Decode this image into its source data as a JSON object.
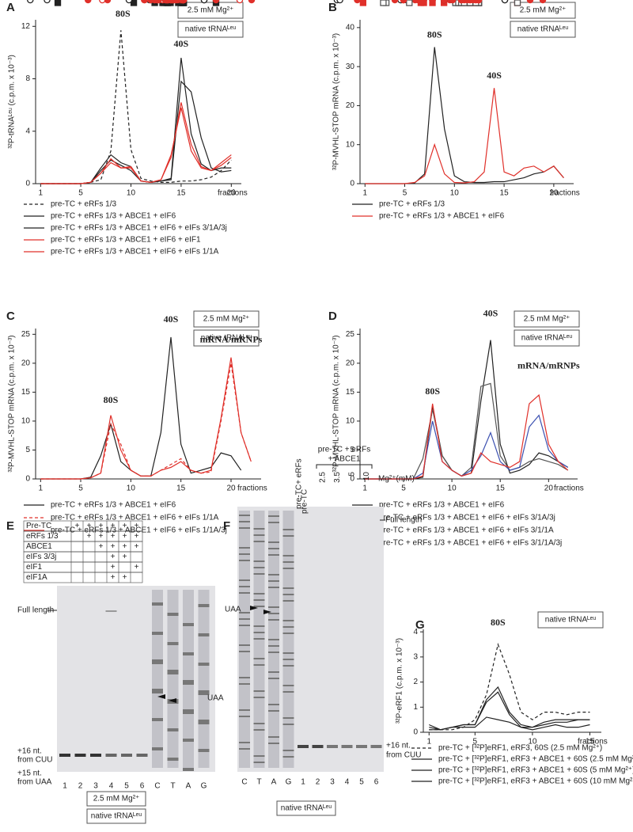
{
  "chart_data": [
    {
      "type": "line",
      "panel": "A",
      "ylabel": "³²P-tRNAᴸᵉᵘ (c.p.m. x 10⁻³)",
      "xlabel": "fractions",
      "x": [
        1,
        2,
        3,
        4,
        5,
        6,
        7,
        8,
        9,
        10,
        11,
        12,
        13,
        14,
        15,
        16,
        17,
        18,
        19,
        20
      ],
      "xlim": [
        0.5,
        21
      ],
      "xticks": [
        1,
        5,
        10,
        15,
        20
      ],
      "ylim": [
        0,
        12.5
      ],
      "yticks": [
        0,
        4,
        8,
        12
      ],
      "annotations": [
        "80S",
        "40S"
      ],
      "boxes": [
        "2.5 mM Mg²⁺",
        "native tRNAᴸᵉᵘ"
      ],
      "series": [
        {
          "name": "pre-TC + eRFs 1/3",
          "color": "#222222",
          "marker": "circle-open",
          "dashed": true,
          "values": [
            0,
            0,
            0,
            0,
            0,
            0.1,
            0.3,
            2.5,
            11.7,
            2.6,
            0.4,
            0.2,
            0.1,
            0.1,
            0.2,
            0.2,
            0.3,
            0.5,
            1.0,
            1.8
          ]
        },
        {
          "name": "pre-TC + eRFs 1/3 + ABCE1 + eIF6",
          "color": "#222222",
          "marker": "square",
          "dashed": false,
          "values": [
            0,
            0,
            0,
            0,
            0,
            0.1,
            1.2,
            2.2,
            1.6,
            1.3,
            0.2,
            0.1,
            0.2,
            0.4,
            9.6,
            3.8,
            1.5,
            1.0,
            1.2,
            1.2
          ]
        },
        {
          "name": "pre-TC + eRFs 1/3 + ABCE1 + eIF6 + eIFs 3/1A/3j",
          "color": "#222222",
          "marker": "triangle",
          "dashed": false,
          "values": [
            0,
            0,
            0,
            0,
            0,
            0.1,
            1.0,
            1.8,
            1.4,
            1.0,
            0.2,
            0.1,
            0.2,
            0.3,
            7.8,
            7.0,
            3.5,
            1.2,
            0.9,
            1.0
          ]
        },
        {
          "name": "pre-TC + eRFs 1/3 + ABCE1 + eIF6 + eIF1",
          "color": "#e0302a",
          "marker": "circle-open",
          "dashed": false,
          "values": [
            0,
            0,
            0,
            0,
            0,
            0.1,
            0.8,
            1.6,
            1.2,
            1.3,
            0.2,
            0.1,
            0.3,
            2.0,
            6.2,
            3.0,
            1.3,
            1.0,
            1.6,
            2.2
          ]
        },
        {
          "name": "pre-TC + eRFs 1/3 + ABCE1 + eIF6 + eIFs 1/1A",
          "color": "#e0302a",
          "marker": "circle",
          "dashed": false,
          "values": [
            0,
            0,
            0,
            0,
            0,
            0.1,
            0.8,
            1.9,
            1.2,
            1.2,
            0.2,
            0.1,
            0.3,
            2.2,
            5.8,
            2.5,
            1.2,
            1.0,
            1.4,
            2.0
          ]
        }
      ]
    },
    {
      "type": "line",
      "panel": "B",
      "ylabel": "³²P-MVHL-STOP mRNA (c.p.m. x 10⁻³)",
      "xlabel": "fractions",
      "x": [
        1,
        2,
        3,
        4,
        5,
        6,
        7,
        8,
        9,
        10,
        11,
        12,
        13,
        14,
        15,
        16,
        17,
        18,
        19,
        20,
        21
      ],
      "xlim": [
        0.5,
        22
      ],
      "xticks": [
        1,
        5,
        10,
        15,
        20
      ],
      "ylim": [
        0,
        42
      ],
      "yticks": [
        0,
        10,
        20,
        30,
        40
      ],
      "annotations": [
        "80S",
        "40S"
      ],
      "boxes": [
        "2.5 mM Mg²⁺",
        "native tRNAᴸᵉᵘ"
      ],
      "series": [
        {
          "name": "pre-TC + eRFs 1/3",
          "color": "#222222",
          "marker": "circle-open",
          "dashed": false,
          "values": [
            0,
            0,
            0,
            0,
            0,
            0.2,
            2.5,
            35,
            14,
            2,
            0.5,
            0.3,
            0.3,
            0.5,
            0.5,
            1,
            1.5,
            2.5,
            3,
            4.5,
            1.5
          ]
        },
        {
          "name": "pre-TC + eRFs 1/3 + ABCE1 + eIF6",
          "color": "#e0302a",
          "marker": "circle",
          "dashed": false,
          "values": [
            0,
            0,
            0,
            0,
            0,
            0.3,
            2,
            10,
            2.5,
            0.3,
            0.2,
            0.5,
            3,
            24.5,
            3,
            2,
            4,
            4.5,
            3,
            4.5,
            1.5
          ]
        }
      ]
    },
    {
      "type": "line",
      "panel": "C",
      "ylabel": "³²P-MVHL-STOP mRNA (c.p.m. x 10⁻³)",
      "xlabel": "fractions",
      "x": [
        1,
        2,
        3,
        4,
        5,
        6,
        7,
        8,
        9,
        10,
        11,
        12,
        13,
        14,
        15,
        16,
        17,
        18,
        19,
        20,
        21,
        22
      ],
      "xlim": [
        0.5,
        23
      ],
      "xticks": [
        1,
        5,
        10,
        15,
        20
      ],
      "ylim": [
        0,
        26
      ],
      "yticks": [
        0,
        5,
        10,
        15,
        20,
        25
      ],
      "annotations": [
        "80S",
        "40S",
        "mRNA/mRNPs"
      ],
      "boxes": [
        "2.5 mM Mg²⁺",
        "native tRNAᴸᵉᵘ"
      ],
      "series": [
        {
          "name": "pre-TC + eRFs 1/3 + ABCE1 + eIF6",
          "color": "#222222",
          "marker": "circle-open",
          "dashed": false,
          "values": [
            0,
            0,
            0,
            0,
            0,
            0.3,
            4,
            9.5,
            3,
            1.5,
            0.5,
            0.5,
            8,
            24.5,
            6,
            1,
            1.5,
            2,
            4.5,
            4,
            1.5,
            null
          ]
        },
        {
          "name": "pre-TC + eRFs 1/3 + ABCE1 + eIF6 + eIFs 1/1A",
          "color": "#e0302a",
          "marker": "square",
          "dashed": true,
          "values": [
            0,
            0,
            0,
            0,
            0,
            0.2,
            1,
            9.5,
            6,
            1.5,
            0.5,
            0.5,
            1.5,
            2.5,
            3.5,
            1.5,
            1,
            1.2,
            10,
            20,
            8,
            3
          ]
        },
        {
          "name": "pre-TC + eRFs 1/3 + ABCE1 + eIF6 + eIFs 1/1A/3j",
          "color": "#e0302a",
          "marker": "circle",
          "dashed": false,
          "values": [
            0,
            0,
            0,
            0,
            0,
            0.2,
            1,
            11,
            5,
            1.5,
            0.5,
            0.5,
            1.5,
            2,
            3,
            1.5,
            1,
            1.5,
            10.5,
            21,
            8,
            3
          ]
        }
      ]
    },
    {
      "type": "line",
      "panel": "D",
      "ylabel": "³²P-MVHL-STOP mRNA (c.p.m. x 10⁻³)",
      "xlabel": "fractions",
      "x": [
        1,
        2,
        3,
        4,
        5,
        6,
        7,
        8,
        9,
        10,
        11,
        12,
        13,
        14,
        15,
        16,
        17,
        18,
        19,
        20,
        21,
        22
      ],
      "xlim": [
        0.5,
        23
      ],
      "xticks": [
        1,
        5,
        10,
        15,
        20
      ],
      "ylim": [
        0,
        26
      ],
      "yticks": [
        0,
        5,
        10,
        15,
        20,
        25
      ],
      "annotations": [
        "80S",
        "40S",
        "mRNA/mRNPs"
      ],
      "boxes": [
        "2.5 mM Mg²⁺",
        "native tRNAᴸᵉᵘ"
      ],
      "series": [
        {
          "name": "pre-TC + eRFs 1/3 + ABCE1 + eIF6",
          "color": "#222222",
          "marker": "circle-open",
          "dashed": false,
          "values": [
            0,
            0,
            0,
            0,
            0,
            0,
            0.3,
            12.5,
            4,
            1.5,
            0.5,
            1,
            13.5,
            24,
            6,
            1,
            1.5,
            2.5,
            4.5,
            4,
            3,
            2
          ]
        },
        {
          "name": "pre-TC + eRFs 1/3 + ABCE1 + eIF6 + eIFs 3/1A/3j",
          "color": "#555555",
          "marker": "square-open",
          "dashed": false,
          "values": [
            0,
            0,
            0,
            0,
            0,
            0,
            3.5,
            12,
            4,
            1.5,
            0.5,
            2,
            16,
            16.5,
            4,
            1.5,
            2,
            3,
            3.5,
            3,
            2.5,
            1.5
          ]
        },
        {
          "name": "pre-TC + eRFs 1/3 + ABCE1 + eIF6 + eIFs 3/1/1A",
          "color": "#3a4fb0",
          "marker": "triangle",
          "dashed": false,
          "values": [
            0,
            0,
            0,
            0,
            0,
            0,
            1,
            10,
            3,
            1.5,
            0.5,
            1.5,
            4,
            8,
            3,
            1.5,
            2,
            9,
            11,
            5,
            3,
            2
          ]
        },
        {
          "name": "pre-TC + eRFs 1/3 + ABCE1 + eIF6 + eIFs 3/1/1A/3j",
          "color": "#e0302a",
          "marker": "circle",
          "dashed": false,
          "values": [
            0,
            0,
            0,
            0,
            0,
            0,
            0.5,
            13,
            3,
            1.5,
            0.5,
            1,
            4.5,
            3,
            2.5,
            2,
            3,
            13,
            14.5,
            6,
            3,
            1.5
          ]
        }
      ]
    },
    {
      "type": "line",
      "panel": "G",
      "ylabel": "³²P-eRF1 (c.p.m. x 10⁻³)",
      "xlabel": "fractions",
      "x": [
        1,
        2,
        3,
        4,
        5,
        6,
        7,
        8,
        9,
        10,
        11,
        12,
        13,
        14,
        15
      ],
      "xlim": [
        0.5,
        16
      ],
      "xticks": [
        1,
        5,
        10,
        15
      ],
      "ylim": [
        0,
        4.1
      ],
      "yticks": [
        0,
        1,
        2,
        3,
        4
      ],
      "annotations": [
        "80S"
      ],
      "boxes": [
        "native tRNAᴸᵉᵘ"
      ],
      "series": [
        {
          "name": "pre-TC + [³²P]eRF1, eRF3, 60S (2.5 mM Mg²⁺)",
          "color": "#222222",
          "marker": "circle-open",
          "dashed": true,
          "values": [
            0.1,
            0.1,
            0.1,
            0.2,
            0.5,
            1.5,
            3.5,
            2.3,
            0.8,
            0.5,
            0.8,
            0.8,
            0.7,
            0.8,
            0.8
          ]
        },
        {
          "name": "pre-TC + [³²P]eRF1, eRF3 + ABCE1 + 60S (2.5 mM Mg²⁺)",
          "color": "#222222",
          "marker": "circle",
          "dashed": false,
          "values": [
            0.3,
            0.1,
            0.2,
            0.2,
            0.2,
            0.6,
            0.5,
            0.4,
            0.2,
            0.2,
            0.4,
            0.5,
            0.5,
            0.5,
            0.5
          ]
        },
        {
          "name": "pre-TC + [³²P]eRF1, eRF3 + ABCE1 + 60S (5 mM Mg²⁺)",
          "color": "#222222",
          "marker": "triangle",
          "dashed": false,
          "values": [
            0.1,
            0.1,
            0.2,
            0.3,
            0.3,
            1.2,
            1.6,
            0.7,
            0.2,
            0.1,
            0.2,
            0.3,
            0.2,
            0.2,
            0.3
          ]
        },
        {
          "name": "pre-TC + [³²P]eRF1, eRF3 + ABCE1 + 60S (10 mM Mg²⁺)",
          "color": "#222222",
          "marker": "square",
          "dashed": false,
          "values": [
            0.2,
            0.1,
            0.2,
            0.3,
            0.3,
            1.3,
            1.8,
            0.8,
            0.3,
            0.2,
            0.3,
            0.4,
            0.4,
            0.5,
            0.5
          ]
        }
      ]
    }
  ],
  "gels": [
    {
      "panel": "E",
      "table": [
        {
          "label": "Pre-TC",
          "cells": [
            "+",
            "+",
            "+",
            "+",
            "+",
            "+"
          ]
        },
        {
          "label": "eRFs 1/3",
          "cells": [
            null,
            "+",
            "+",
            "+",
            "+",
            "+"
          ]
        },
        {
          "label": "ABCE1",
          "cells": [
            null,
            null,
            "+",
            "+",
            "+",
            "+"
          ]
        },
        {
          "label": "eIFs 3/3j",
          "cells": [
            null,
            null,
            null,
            "+",
            "+",
            null
          ]
        },
        {
          "label": "eIF1",
          "cells": [
            null,
            null,
            null,
            "+",
            null,
            "+"
          ]
        },
        {
          "label": "eIF1A",
          "cells": [
            null,
            null,
            null,
            "+",
            "+",
            null
          ]
        }
      ],
      "lanes": [
        "1",
        "2",
        "3",
        "4",
        "5",
        "6",
        "C",
        "T",
        "A",
        "G"
      ],
      "labels": [
        "Full length",
        "+16 nt.",
        "from CUU",
        "+15 nt.",
        "from UAA",
        "UAA"
      ],
      "boxes": [
        "2.5 mM Mg²⁺",
        "native tRNAᴸᵉᵘ"
      ]
    },
    {
      "panel": "F",
      "headers": [
        "pre-TC",
        "pre-TC+ eRFs",
        "pre-TC + eRFs",
        "+ ABCE1"
      ],
      "conditions": [
        "2.5",
        "3.5",
        "5",
        "10"
      ],
      "condition_unit": "Mg²⁺(mM)",
      "lanes": [
        "C",
        "T",
        "A",
        "G",
        "1",
        "2",
        "3",
        "4",
        "5",
        "6"
      ],
      "labels": [
        "Full length",
        "UAA",
        "+16 nt.",
        "from CUU"
      ],
      "boxes": [
        "native tRNAᴸᵉᵘ"
      ]
    }
  ]
}
